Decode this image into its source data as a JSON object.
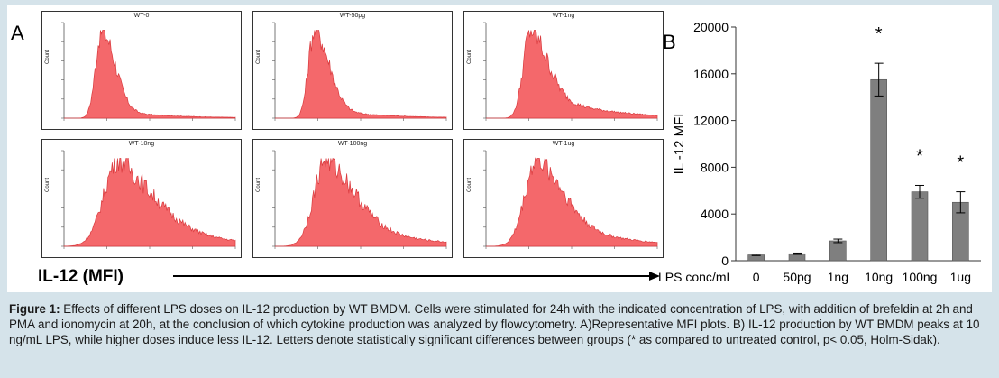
{
  "panel_a_letter": "A",
  "panel_b_letter": "B",
  "histograms": [
    {
      "title": "WT-0",
      "y_axis_label": "Count",
      "peak": 0.22,
      "spread_left": 0.05,
      "spread_right": 0.11,
      "tail": 0.1
    },
    {
      "title": "WT-50pg",
      "y_axis_label": "Count",
      "peak": 0.23,
      "spread_left": 0.05,
      "spread_right": 0.12,
      "tail": 0.12
    },
    {
      "title": "WT-1ng",
      "y_axis_label": "Count",
      "peak": 0.26,
      "spread_left": 0.06,
      "spread_right": 0.14,
      "tail": 0.35
    },
    {
      "title": "WT-10ng",
      "y_axis_label": "Count",
      "peak": 0.32,
      "spread_left": 0.12,
      "spread_right": 0.3,
      "tail": 0.55
    },
    {
      "title": "WT-100ng",
      "y_axis_label": "Count",
      "peak": 0.3,
      "spread_left": 0.1,
      "spread_right": 0.24,
      "tail": 0.45
    },
    {
      "title": "WT-1ug",
      "y_axis_label": "Count",
      "peak": 0.3,
      "spread_left": 0.1,
      "spread_right": 0.22,
      "tail": 0.42
    }
  ],
  "histogram_fill_color": "#f4686b",
  "histogram_stroke_color": "#d93a3e",
  "x_axis_title": "IL-12 (MFI)",
  "chart_data": {
    "type": "bar",
    "categories": [
      "0",
      "50pg",
      "1ng",
      "10ng",
      "100ng",
      "1ug"
    ],
    "category_axis_prefix": "LPS  conc/mL",
    "values": [
      500,
      600,
      1700,
      15500,
      5900,
      5000
    ],
    "errors": [
      60,
      60,
      150,
      1400,
      550,
      900
    ],
    "significant": [
      false,
      false,
      false,
      true,
      true,
      true
    ],
    "significance_marker": "*",
    "ylabel": "IL -12 MFI",
    "ylim": [
      0,
      20000
    ],
    "yticks": [
      0,
      4000,
      8000,
      12000,
      16000,
      20000
    ],
    "bar_color": "#7f7f7f"
  },
  "caption": {
    "head": "Figure 1:",
    "text": " Effects of different LPS doses on IL-12 production by WT BMDM. Cells were stimulated for 24h with the indicated concentration of LPS, with addition of brefeldin at 2h and PMA and ionomycin at 20h, at the conclusion of which cytokine production was analyzed by flowcytometry. A)Representative MFI plots. B) IL-12 production by WT BMDM peaks at 10 ng/mL LPS, while higher doses induce less IL-12. Letters denote statistically significant differences between groups (* as compared to untreated control, p< 0.05, Holm-Sidak)."
  }
}
